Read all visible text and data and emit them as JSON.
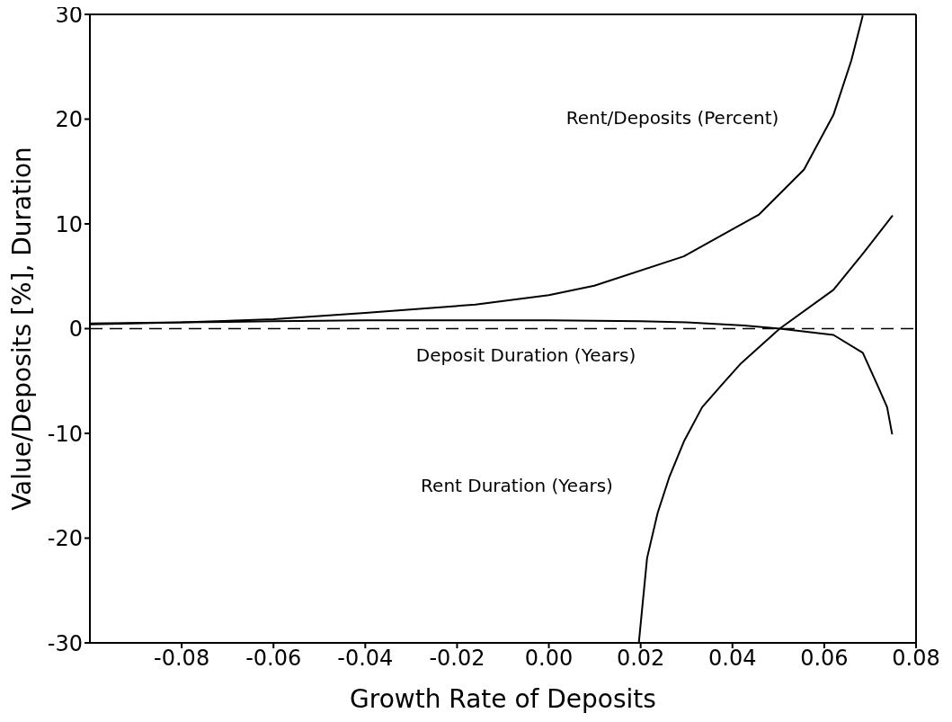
{
  "chart_data": {
    "type": "line",
    "xlabel": "Growth Rate of Deposits",
    "ylabel": "Value/Deposits [%], Duration",
    "xlim": [
      -0.1,
      0.08
    ],
    "ylim": [
      -30,
      30
    ],
    "xticks": [
      {
        "value": -0.08,
        "label": "-0.08"
      },
      {
        "value": -0.06,
        "label": "-0.06"
      },
      {
        "value": -0.04,
        "label": "-0.04"
      },
      {
        "value": -0.02,
        "label": "-0.02"
      },
      {
        "value": 0,
        "label": "0.00"
      },
      {
        "value": 0.02,
        "label": "0.02"
      },
      {
        "value": 0.04,
        "label": "0.04"
      },
      {
        "value": 0.06,
        "label": "0.06"
      },
      {
        "value": 0.08,
        "label": "0.08"
      }
    ],
    "yticks": [
      -30,
      -20,
      -10,
      0,
      10,
      20,
      30
    ],
    "marker": "none",
    "line_style": "solid",
    "series": [
      {
        "color": "#000000",
        "x": [
          -0.1,
          -0.08,
          -0.06,
          -0.04,
          -0.016,
          0,
          0.0099,
          0.0294,
          0.0458,
          0.0556,
          0.062,
          0.0659,
          0.0684
        ],
        "values": [
          0.5,
          0.6,
          0.9,
          1.5,
          2.3,
          3.2,
          4.1,
          6.9,
          10.9,
          15.2,
          20.4,
          25.6,
          29.9
        ]
      },
      {
        "color": "#000000",
        "x": [
          -0.1,
          -0.08,
          -0.06,
          -0.04,
          -0.02,
          0,
          0.02,
          0.03,
          0.0425,
          0.0503,
          0.062,
          0.0684,
          0.0717,
          0.0737,
          0.0748
        ],
        "values": [
          0.4,
          0.6,
          0.7,
          0.8,
          0.8,
          0.8,
          0.7,
          0.6,
          0.3,
          0,
          -0.6,
          -2.3,
          -5.5,
          -7.5,
          -10.1
        ]
      },
      {
        "color": "#000000",
        "x": [
          0.0196,
          0.0214,
          0.0237,
          0.0263,
          0.0295,
          0.0334,
          0.038,
          0.0419,
          0.0503,
          0.062,
          0.0685,
          0.0749
        ],
        "values": [
          -30,
          -21.9,
          -17.6,
          -14.1,
          -10.7,
          -7.5,
          -5.2,
          -3.3,
          0,
          3.7,
          7.2,
          10.8
        ]
      }
    ],
    "ref_lines": [
      {
        "axis": "y",
        "value": 0,
        "color": "#000000",
        "line_style": "dashed"
      }
    ],
    "annotations": [
      "Rent/Deposits (Percent)",
      "Deposit Duration (Years)",
      "Rent Duration (Years)"
    ]
  }
}
